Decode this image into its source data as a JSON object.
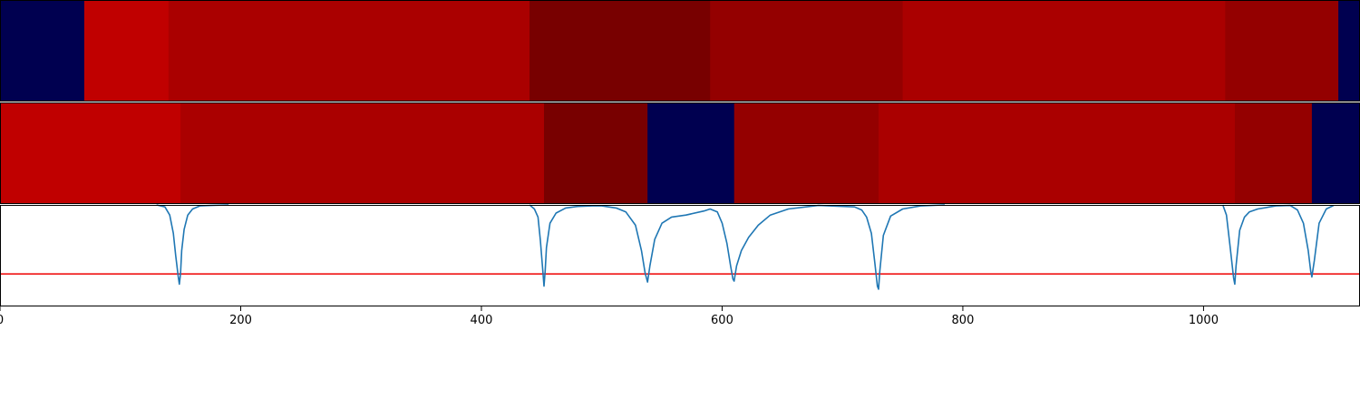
{
  "chart_data": [
    {
      "type": "heatmap",
      "title": "",
      "xlabel": "",
      "ylabel": "",
      "xlim": [
        0,
        1130
      ],
      "segments": [
        {
          "start": 0,
          "end": 70,
          "color": "#000050"
        },
        {
          "start": 70,
          "end": 140,
          "color": "#c00000"
        },
        {
          "start": 140,
          "end": 440,
          "color": "#aa0000"
        },
        {
          "start": 440,
          "end": 590,
          "color": "#780000"
        },
        {
          "start": 590,
          "end": 750,
          "color": "#940000"
        },
        {
          "start": 750,
          "end": 1018,
          "color": "#aa0000"
        },
        {
          "start": 1018,
          "end": 1112,
          "color": "#940000"
        },
        {
          "start": 1112,
          "end": 1130,
          "color": "#000050"
        }
      ]
    },
    {
      "type": "heatmap",
      "title": "",
      "xlabel": "",
      "ylabel": "",
      "xlim": [
        0,
        1130
      ],
      "segments": [
        {
          "start": 0,
          "end": 150,
          "color": "#c00000"
        },
        {
          "start": 150,
          "end": 452,
          "color": "#aa0000"
        },
        {
          "start": 452,
          "end": 538,
          "color": "#780000"
        },
        {
          "start": 538,
          "end": 610,
          "color": "#000050"
        },
        {
          "start": 610,
          "end": 730,
          "color": "#940000"
        },
        {
          "start": 730,
          "end": 1026,
          "color": "#aa0000"
        },
        {
          "start": 1026,
          "end": 1090,
          "color": "#940000"
        },
        {
          "start": 1090,
          "end": 1130,
          "color": "#000050"
        }
      ]
    },
    {
      "type": "line",
      "title": "",
      "xlabel": "",
      "ylabel": "",
      "xlim": [
        0,
        1130
      ],
      "ylim": [
        0,
        1
      ],
      "x_ticks": [
        "0",
        "200",
        "400",
        "600",
        "800",
        "1000"
      ],
      "x_tick_values": [
        0,
        200,
        400,
        600,
        800,
        1000
      ],
      "grid": false,
      "series": [
        {
          "color": "#1f77b4",
          "x": [
            130,
            137,
            141,
            144,
            146,
            148,
            149,
            150,
            151,
            153,
            156,
            160,
            166,
            175,
            190,
            440,
            444,
            447,
            449,
            451,
            452,
            453,
            454,
            457,
            462,
            470,
            480,
            492,
            500,
            512,
            520,
            528,
            533,
            536,
            538,
            540,
            544,
            550,
            558,
            570,
            585,
            590,
            596,
            600,
            604,
            607,
            609,
            610,
            612,
            616,
            622,
            630,
            640,
            655,
            680,
            710,
            716,
            720,
            724,
            727,
            729,
            730,
            731,
            734,
            740,
            750,
            765,
            785,
            1016,
            1019,
            1022,
            1025,
            1026,
            1027,
            1030,
            1034,
            1038,
            1045,
            1060,
            1072,
            1078,
            1083,
            1087,
            1089,
            1090,
            1092,
            1096,
            1102,
            1108
          ],
          "y": [
            1.0,
            0.98,
            0.9,
            0.72,
            0.5,
            0.3,
            0.22,
            0.32,
            0.55,
            0.76,
            0.9,
            0.96,
            0.99,
            0.995,
            1.0,
            1.0,
            0.96,
            0.88,
            0.65,
            0.35,
            0.2,
            0.35,
            0.58,
            0.82,
            0.92,
            0.97,
            0.985,
            0.99,
            0.99,
            0.97,
            0.93,
            0.8,
            0.55,
            0.33,
            0.24,
            0.4,
            0.66,
            0.82,
            0.88,
            0.9,
            0.94,
            0.96,
            0.93,
            0.82,
            0.62,
            0.4,
            0.27,
            0.25,
            0.4,
            0.55,
            0.68,
            0.8,
            0.9,
            0.96,
            0.995,
            0.98,
            0.95,
            0.88,
            0.72,
            0.42,
            0.2,
            0.17,
            0.35,
            0.7,
            0.89,
            0.96,
            0.99,
            1.0,
            1.0,
            0.9,
            0.6,
            0.28,
            0.22,
            0.4,
            0.75,
            0.88,
            0.93,
            0.96,
            0.99,
            0.995,
            0.95,
            0.82,
            0.55,
            0.35,
            0.29,
            0.45,
            0.82,
            0.96,
            0.995
          ]
        }
      ],
      "hlines": [
        {
          "y": 0.32,
          "color": "#ee0000"
        }
      ]
    }
  ]
}
